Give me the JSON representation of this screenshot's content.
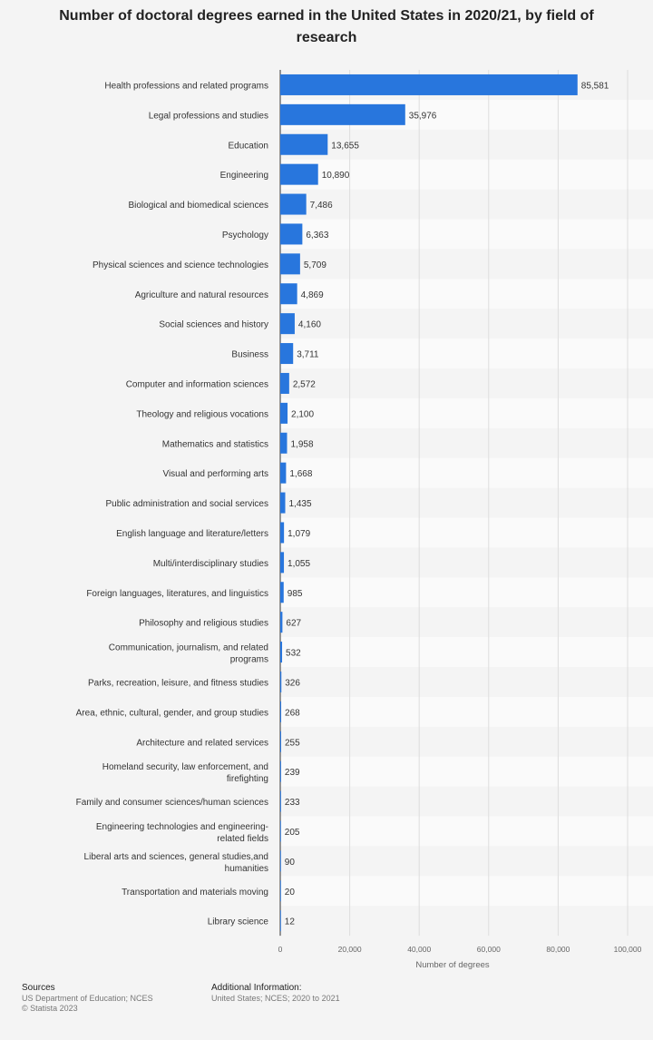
{
  "chart_data": {
    "type": "bar",
    "orientation": "horizontal",
    "title": "Number of doctoral degrees earned in the United States in 2020/21, by field of research",
    "xlabel": "Number of degrees",
    "ylabel": "",
    "xlim": [
      0,
      100000
    ],
    "x_ticks": [
      "0",
      "20,000",
      "40,000",
      "60,000",
      "80,000",
      "100,000"
    ],
    "categories": [
      "Health professions and related programs",
      "Legal professions and studies",
      "Education",
      "Engineering",
      "Biological and biomedical sciences",
      "Psychology",
      "Physical sciences and science technologies",
      "Agriculture and natural resources",
      "Social sciences and history",
      "Business",
      "Computer and information sciences",
      "Theology and religious vocations",
      "Mathematics and statistics",
      "Visual and performing arts",
      "Public administration and social services",
      "English language and literature/letters",
      "Multi/interdisciplinary studies",
      "Foreign languages, literatures, and linguistics",
      "Philosophy and religious studies",
      "Communication, journalism, and related programs",
      "Parks, recreation, leisure, and fitness studies",
      "Area, ethnic, cultural, gender, and group studies",
      "Architecture and related services",
      "Homeland security, law enforcement, and firefighting",
      "Family and consumer sciences/human sciences",
      "Engineering technologies and engineering-related fields",
      "Liberal arts and sciences, general studies,and humanities",
      "Transportation and materials moving",
      "Library science"
    ],
    "label_lines": [
      [
        "Health professions and related programs"
      ],
      [
        "Legal professions and studies"
      ],
      [
        "Education"
      ],
      [
        "Engineering"
      ],
      [
        "Biological and biomedical sciences"
      ],
      [
        "Psychology"
      ],
      [
        "Physical sciences and science technologies"
      ],
      [
        "Agriculture and natural resources"
      ],
      [
        "Social sciences and history"
      ],
      [
        "Business"
      ],
      [
        "Computer and information sciences"
      ],
      [
        "Theology and religious vocations"
      ],
      [
        "Mathematics and statistics"
      ],
      [
        "Visual and performing arts"
      ],
      [
        "Public administration and social services"
      ],
      [
        "English language and literature/letters"
      ],
      [
        "Multi/interdisciplinary studies"
      ],
      [
        "Foreign languages, literatures, and linguistics"
      ],
      [
        "Philosophy and religious studies"
      ],
      [
        "Communication, journalism, and related",
        "programs"
      ],
      [
        "Parks, recreation, leisure, and fitness studies"
      ],
      [
        "Area, ethnic, cultural, gender, and group studies"
      ],
      [
        "Architecture and related services"
      ],
      [
        "Homeland security, law enforcement, and",
        "firefighting"
      ],
      [
        "Family and consumer sciences/human sciences"
      ],
      [
        "Engineering technologies and engineering-",
        "related fields"
      ],
      [
        "Liberal arts and sciences, general studies,and",
        "humanities"
      ],
      [
        "Transportation and materials moving"
      ],
      [
        "Library science"
      ]
    ],
    "values": [
      85581,
      35976,
      13655,
      10890,
      7486,
      6363,
      5709,
      4869,
      4160,
      3711,
      2572,
      2100,
      1958,
      1668,
      1435,
      1079,
      1055,
      985,
      627,
      532,
      326,
      268,
      255,
      239,
      233,
      205,
      90,
      20,
      12
    ],
    "value_labels": [
      "85,581",
      "35,976",
      "13,655",
      "10,890",
      "7,486",
      "6,363",
      "5,709",
      "4,869",
      "4,160",
      "3,711",
      "2,572",
      "2,100",
      "1,958",
      "1,668",
      "1,435",
      "1,079",
      "1,055",
      "985",
      "627",
      "532",
      "326",
      "268",
      "255",
      "239",
      "233",
      "205",
      "90",
      "20",
      "12"
    ],
    "bar_color": "#2876dd",
    "grid": true,
    "legend": "none"
  },
  "footer": {
    "sources_heading": "Sources",
    "sources_text": "US Department of Education; NCES",
    "copyright": "© Statista 2023",
    "additional_heading": "Additional Information:",
    "additional_text": "United States; NCES; 2020 to 2021"
  }
}
